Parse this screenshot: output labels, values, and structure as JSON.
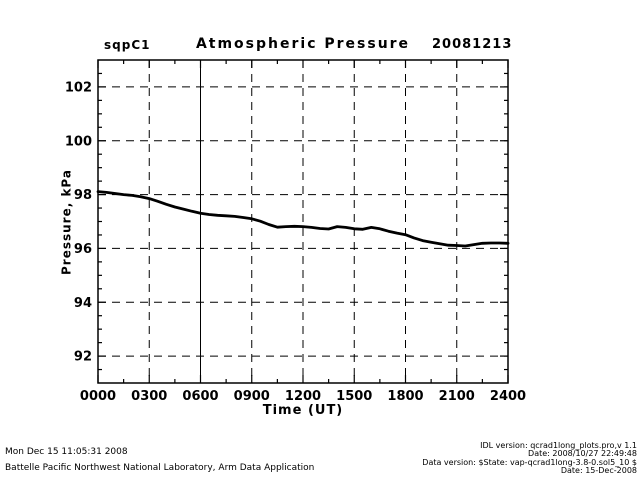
{
  "chart_data": {
    "type": "line",
    "site": "sqpC1",
    "title": "Atmospheric Pressure",
    "date_label": "20081213",
    "xlabel": "Time (UT)",
    "ylabel": "Pressure, kPa",
    "xlim": [
      0,
      24
    ],
    "ylim": [
      91,
      103
    ],
    "x_tick_values": [
      0,
      3,
      6,
      9,
      12,
      15,
      18,
      21,
      24
    ],
    "x_tick_labels": [
      "0000",
      "0300",
      "0600",
      "0900",
      "1200",
      "1500",
      "1800",
      "2100",
      "2400"
    ],
    "x_minor_step": 1.5,
    "y_tick_values": [
      92,
      94,
      96,
      98,
      100,
      102
    ],
    "y_tick_labels": [
      "92",
      "94",
      "96",
      "98",
      "100",
      "102"
    ],
    "y_minor_step": 0.5,
    "grid": "dashed",
    "x_solid_gridlines": [
      6
    ],
    "legend": "none",
    "line_color": "#000000",
    "background": "#ffffff",
    "series": [
      {
        "name": "atmospheric-pressure",
        "x": [
          0,
          0.5,
          1,
          1.5,
          2,
          2.5,
          3,
          3.5,
          4,
          4.5,
          5,
          5.5,
          6,
          6.5,
          7,
          7.5,
          8,
          8.5,
          9,
          9.5,
          10,
          10.5,
          11,
          11.5,
          12,
          12.5,
          13,
          13.5,
          14,
          14.5,
          15,
          15.5,
          16,
          16.5,
          17,
          17.5,
          18,
          18.5,
          19,
          19.5,
          20,
          20.5,
          21,
          21.5,
          22,
          22.5,
          23,
          23.5,
          24
        ],
        "y": [
          98.11,
          98.08,
          98.04,
          98.0,
          97.97,
          97.92,
          97.85,
          97.75,
          97.64,
          97.54,
          97.46,
          97.38,
          97.31,
          97.26,
          97.23,
          97.21,
          97.19,
          97.15,
          97.1,
          97.01,
          96.89,
          96.79,
          96.81,
          96.82,
          96.81,
          96.78,
          96.74,
          96.72,
          96.81,
          96.78,
          96.73,
          96.71,
          96.78,
          96.73,
          96.64,
          96.57,
          96.51,
          96.39,
          96.29,
          96.23,
          96.17,
          96.12,
          96.11,
          96.09,
          96.14,
          96.19,
          96.2,
          96.2,
          96.19
        ]
      }
    ]
  },
  "footer": {
    "left_line1": "Mon Dec 15 11:05:31 2008",
    "left_line2": "Battelle Pacific Northwest National Laboratory, Arm Data Application",
    "right_line1": "IDL version: qcrad1long_plots.pro,v 1.1",
    "right_line2": "Date: 2008/10/27 22:49:48",
    "right_line3": "Data version: $State: vap-qcrad1long-3.8-0.sol5_10 $",
    "right_line4": "Date: 15-Dec-2008"
  }
}
